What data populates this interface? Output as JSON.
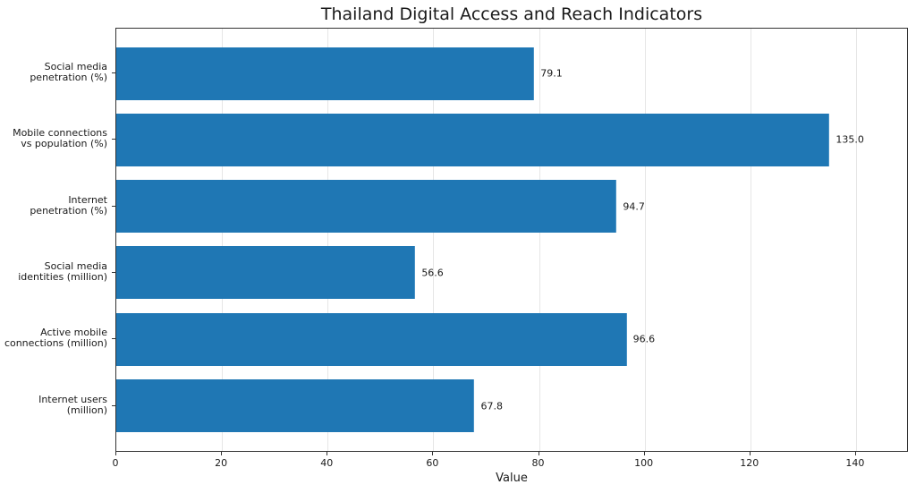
{
  "chart_data": {
    "type": "bar",
    "orientation": "horizontal",
    "title": "Thailand Digital Access and Reach Indicators",
    "xlabel": "Value",
    "ylabel": "",
    "xlim": [
      0,
      150
    ],
    "xticks": [
      0,
      20,
      40,
      60,
      80,
      100,
      120,
      140
    ],
    "grid": "x",
    "bar_color": "#1f77b4",
    "categories": [
      "Social media\npenetration (%)",
      "Mobile connections\nvs population (%)",
      "Internet\npenetration (%)",
      "Social media\nidentities (million)",
      "Active mobile\nconnections (million)",
      "Internet users\n(million)"
    ],
    "values": [
      79.1,
      135.0,
      94.7,
      56.6,
      96.6,
      67.8
    ],
    "value_labels": [
      "79.1",
      "135.0",
      "94.7",
      "56.6",
      "96.6",
      "67.8"
    ]
  },
  "labels": [
    [
      "Social media",
      "penetration (%)"
    ],
    [
      "Mobile connections",
      "vs population (%)"
    ],
    [
      "Internet",
      "penetration (%)"
    ],
    [
      "Social media",
      "identities (million)"
    ],
    [
      "Active mobile",
      "connections (million)"
    ],
    [
      "Internet users",
      "(million)"
    ]
  ]
}
